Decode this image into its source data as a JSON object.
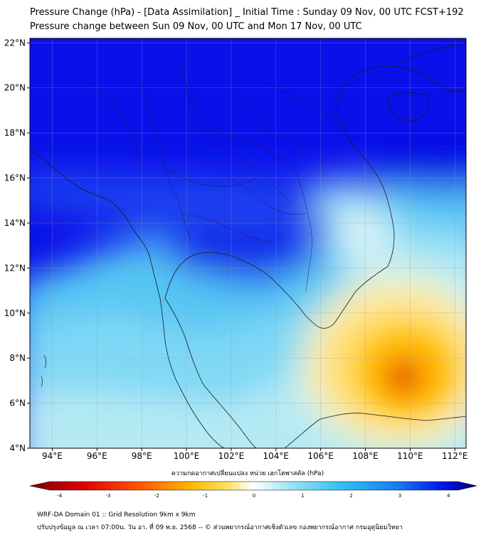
{
  "title_line1": "Pressure Change (hPa) - [Data Assimilation] _ Initial Time : Sunday 09 Nov, 00 UTC FCST+192",
  "title_line2": "Pressure change between Sun 09 Nov, 00 UTC and Mon 17 Nov, 00 UTC",
  "map": {
    "lon_range": [
      93,
      112.5
    ],
    "lat_range": [
      4,
      22.2
    ],
    "lon_ticks": [
      {
        "value": 94,
        "label": "94°E"
      },
      {
        "value": 96,
        "label": "96°E"
      },
      {
        "value": 98,
        "label": "98°E"
      },
      {
        "value": 100,
        "label": "100°E"
      },
      {
        "value": 102,
        "label": "102°E"
      },
      {
        "value": 104,
        "label": "104°E"
      },
      {
        "value": 106,
        "label": "106°E"
      },
      {
        "value": 108,
        "label": "108°E"
      },
      {
        "value": 110,
        "label": "110°E"
      },
      {
        "value": 112,
        "label": "112°E"
      }
    ],
    "lat_ticks": [
      {
        "value": 4,
        "label": "4°N"
      },
      {
        "value": 6,
        "label": "6°N"
      },
      {
        "value": 8,
        "label": "8°N"
      },
      {
        "value": 10,
        "label": "10°N"
      },
      {
        "value": 12,
        "label": "12°N"
      },
      {
        "value": 14,
        "label": "14°N"
      },
      {
        "value": 16,
        "label": "16°N"
      },
      {
        "value": 18,
        "label": "18°N"
      },
      {
        "value": 20,
        "label": "20°N"
      },
      {
        "value": 22,
        "label": "22°N"
      }
    ],
    "colors": {
      "strong_rise": "#0008e8",
      "rise": "#1a7cf2",
      "weak_rise": "#5ecdf5",
      "neutral": "#eaf8f8",
      "weak_fall": "#ffe27a",
      "fall": "#ffb800",
      "strong_fall": "#f05a00"
    },
    "fall_max_center": {
      "lon": 109.8,
      "lat": 7.1
    }
  },
  "colorbar": {
    "title": "ความกดอากาศเปลี่ยนแปลง หน่วย เฮกโตพาสคัล (hPa)",
    "min": -4.2,
    "max": 4.2,
    "ticks": [
      {
        "value": -4,
        "label": "-4"
      },
      {
        "value": -3,
        "label": "-3"
      },
      {
        "value": -2,
        "label": "-2"
      },
      {
        "value": -1,
        "label": "-1"
      },
      {
        "value": 0,
        "label": "0"
      },
      {
        "value": 1,
        "label": "1"
      },
      {
        "value": 2,
        "label": "2"
      },
      {
        "value": 3,
        "label": "3"
      },
      {
        "value": 4,
        "label": "4"
      }
    ]
  },
  "footer_line1": "WRF-DA Domain 01 :: Grid Resolution 9km x 9km",
  "footer_line2": "ปรับปรุงข้อมูล ณ เวลา 07:00น. วัน อา. ที่ 09 พ.ย. 2568 -- © ส่วนพยากรณ์อากาศเชิงตัวเลข กองพยากรณ์อากาศ กรมอุตุนิยมวิทยา"
}
